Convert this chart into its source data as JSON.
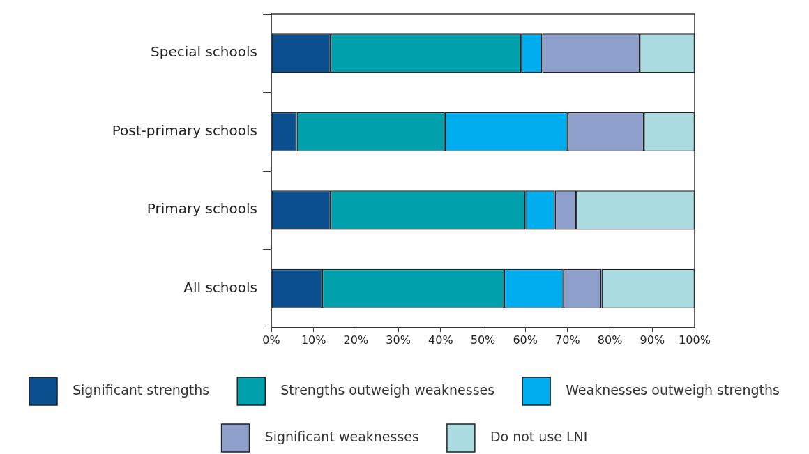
{
  "chart_data": {
    "type": "bar",
    "orientation": "horizontal",
    "stacked": true,
    "categories": [
      "Special schools",
      "Post-primary schools",
      "Primary schools",
      "All schools"
    ],
    "series": [
      {
        "name": "Significant strengths",
        "color": "#0b4f8f",
        "values": [
          14,
          6,
          14,
          12
        ]
      },
      {
        "name": "Strengths outweigh weaknesses",
        "color": "#00a0ac",
        "values": [
          45,
          35,
          46,
          43
        ]
      },
      {
        "name": "Weaknesses outweigh strengths",
        "color": "#00aeef",
        "values": [
          5,
          29,
          7,
          14
        ]
      },
      {
        "name": "Significant weaknesses",
        "color": "#8e9fcb",
        "values": [
          23,
          18,
          5,
          9
        ]
      },
      {
        "name": "Do not use LNI",
        "color": "#a9dbe0",
        "values": [
          13,
          12,
          28,
          22
        ]
      }
    ],
    "xlim": [
      0,
      100
    ],
    "xticks": [
      {
        "value": 0,
        "label": "0%"
      },
      {
        "value": 10,
        "label": "10%"
      },
      {
        "value": 20,
        "label": "20%"
      },
      {
        "value": 30,
        "label": "30%"
      },
      {
        "value": 40,
        "label": "40%"
      },
      {
        "value": 50,
        "label": "50%"
      },
      {
        "value": 60,
        "label": "60%"
      },
      {
        "value": 70,
        "label": "70%"
      },
      {
        "value": 80,
        "label": "80%"
      },
      {
        "value": 90,
        "label": "90%"
      },
      {
        "value": 100,
        "label": "100%"
      }
    ],
    "grid": false,
    "legend": "bottom"
  }
}
